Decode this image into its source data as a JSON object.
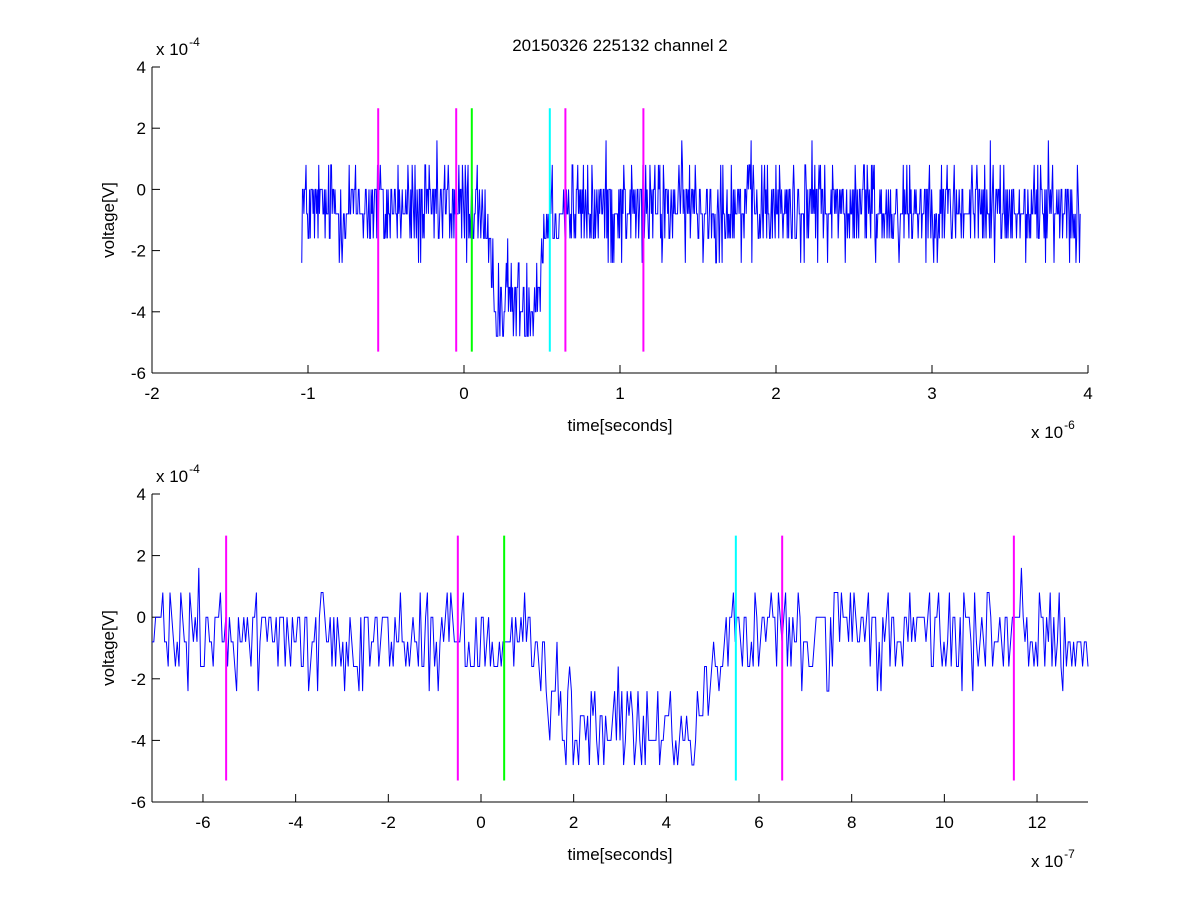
{
  "chart_data": [
    {
      "type": "line",
      "title": "20150326 225132 channel 2",
      "xlabel": "time[seconds]",
      "ylabel": "voltage[V]",
      "x_multiplier": "x 10",
      "x_exponent": "-6",
      "y_multiplier": "x 10",
      "y_exponent": "-4",
      "xlim": [
        -2,
        4
      ],
      "ylim": [
        -6,
        4
      ],
      "xticks": [
        "-2",
        "-1",
        "0",
        "1",
        "2",
        "3",
        "4"
      ],
      "yticks": [
        "-6",
        "-4",
        "-2",
        "0",
        "2",
        "4"
      ],
      "signal": {
        "color": "#0000ff",
        "x_start": -1.04,
        "x_end": 3.95,
        "baseline": -0.6,
        "dip": {
          "start": 0.15,
          "end": 0.5,
          "level": -3.6
        },
        "min": -4.8,
        "max": 1.6,
        "quantum": 0.8
      },
      "markers": [
        {
          "x": -0.55,
          "color": "#ff00ff"
        },
        {
          "x": -0.05,
          "color": "#ff00ff"
        },
        {
          "x": 0.05,
          "color": "#00ff00"
        },
        {
          "x": 0.55,
          "color": "#00ffff"
        },
        {
          "x": 0.65,
          "color": "#ff00ff"
        },
        {
          "x": 1.15,
          "color": "#ff00ff"
        }
      ],
      "marker_range": [
        -5.3,
        2.65
      ]
    },
    {
      "type": "line",
      "xlabel": "time[seconds]",
      "ylabel": "voltage[V]",
      "x_multiplier": "x 10",
      "x_exponent": "-7",
      "y_multiplier": "x 10",
      "y_exponent": "-4",
      "xlim": [
        -7.1,
        13.1
      ],
      "ylim": [
        -6,
        4
      ],
      "xticks": [
        "-6",
        "-4",
        "-2",
        "0",
        "2",
        "4",
        "6",
        "8",
        "10",
        "12"
      ],
      "yticks": [
        "-6",
        "-4",
        "-2",
        "0",
        "2",
        "4"
      ],
      "signal": {
        "color": "#0000ff",
        "x_start": -7.1,
        "x_end": 13.1,
        "baseline": -0.6,
        "dip": {
          "start": 1.4,
          "end": 5.0,
          "level": -3.6
        },
        "min": -4.8,
        "max": 1.6,
        "quantum": 0.8
      },
      "markers": [
        {
          "x": -5.5,
          "color": "#ff00ff"
        },
        {
          "x": -0.5,
          "color": "#ff00ff"
        },
        {
          "x": 0.5,
          "color": "#00ff00"
        },
        {
          "x": 5.5,
          "color": "#00ffff"
        },
        {
          "x": 6.5,
          "color": "#ff00ff"
        },
        {
          "x": 11.5,
          "color": "#ff00ff"
        }
      ],
      "marker_range": [
        -5.3,
        2.65
      ]
    }
  ]
}
